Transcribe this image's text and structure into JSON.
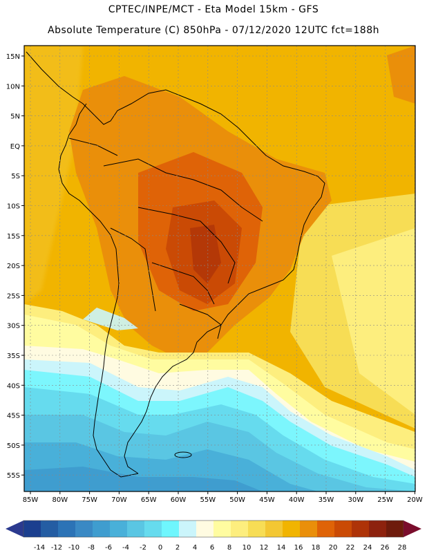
{
  "header": {
    "title": "CPTEC/INPE/MCT -  Eta Model 15km - GFS",
    "subtitle": "Absolute Temperature (C) 850hPa - 07/12/2020 12UTC fct=188h"
  },
  "axes": {
    "lat_labels": [
      "15N",
      "10N",
      "5N",
      "EQ",
      "5S",
      "10S",
      "15S",
      "20S",
      "25S",
      "30S",
      "35S",
      "40S",
      "45S",
      "50S",
      "55S"
    ],
    "lon_labels": [
      "85W",
      "80W",
      "75W",
      "70W",
      "65W",
      "60W",
      "55W",
      "50W",
      "45W",
      "40W",
      "35W",
      "30W",
      "25W",
      "20W"
    ]
  },
  "colorbar": {
    "ticks": [
      "-14",
      "-12",
      "-10",
      "-8",
      "-6",
      "-4",
      "-2",
      "0",
      "2",
      "4",
      "6",
      "8",
      "10",
      "12",
      "14",
      "16",
      "18",
      "20",
      "22",
      "24",
      "26",
      "28"
    ],
    "colors": [
      "#1b3f8f",
      "#245da3",
      "#2c73b6",
      "#3a89c4",
      "#3f9dcf",
      "#49b0d9",
      "#5ac6e3",
      "#66dbee",
      "#6ff6fd",
      "#cbf5fb",
      "#fffbe1",
      "#fffca0",
      "#fdee7e",
      "#f7dd55",
      "#f3c733",
      "#f1b400",
      "#ea8f0a",
      "#df6307",
      "#ca4a05",
      "#ae3308",
      "#8d220e",
      "#6e1b0c"
    ],
    "under_color": "#2b3a8f",
    "over_color": "#7a0d2c"
  }
}
